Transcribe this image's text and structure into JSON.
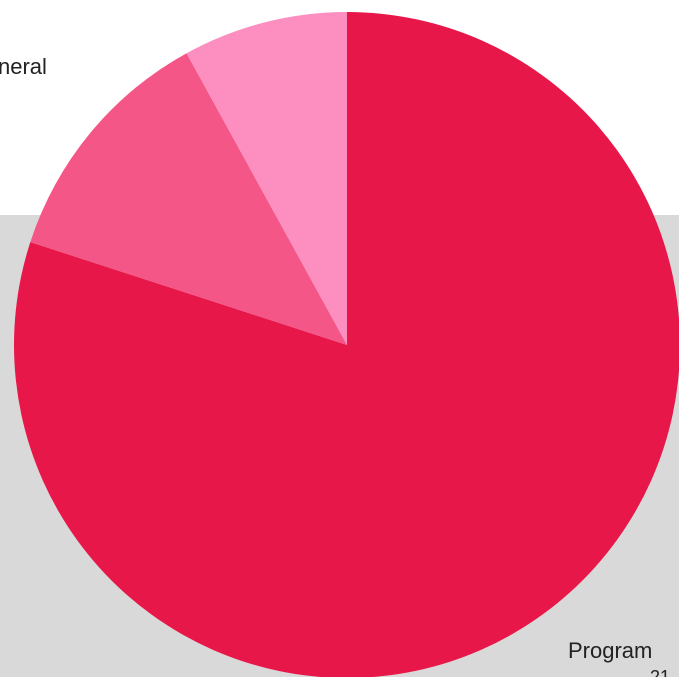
{
  "page": {
    "background_color": "#ffffff",
    "band_color": "#d9d9d9"
  },
  "chart_data": {
    "type": "pie",
    "title": "",
    "start_angle_deg": 0,
    "direction": "clockwise",
    "slices": [
      {
        "label": "Program",
        "value": 80,
        "color": "#e8174a"
      },
      {
        "label": "",
        "value": 12,
        "color": "#f45687"
      },
      {
        "label": "",
        "value": 8,
        "color": "#fc8fc0"
      }
    ],
    "visible_labels": {
      "general_partial": "neral",
      "program": "Program",
      "program_sub_partial": "21"
    }
  }
}
